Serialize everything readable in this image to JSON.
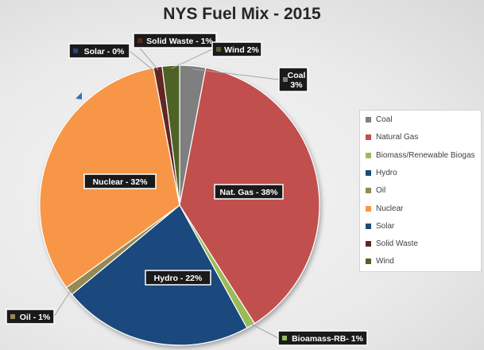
{
  "chart_data": {
    "type": "pie",
    "title": "NYS Fuel Mix - 2015",
    "slices": [
      {
        "name": "Coal",
        "value": 3,
        "color": "#7f7f7f",
        "label": "Coal\n3%"
      },
      {
        "name": "Natural Gas",
        "value": 38,
        "color": "#c0504d",
        "label": "Nat. Gas - 38%"
      },
      {
        "name": "Biomass/Renewable Biogas",
        "value": 1,
        "color": "#9bbb59",
        "label": "Bioamass-RB- 1%"
      },
      {
        "name": "Hydro",
        "value": 22,
        "color": "#1f497d",
        "label": "Hydro - 22%"
      },
      {
        "name": "Oil",
        "value": 1,
        "color": "#948a54",
        "label": "Oil - 1%"
      },
      {
        "name": "Nuclear",
        "value": 32,
        "color": "#f79646",
        "label": "Nuclear - 32%"
      },
      {
        "name": "Solar",
        "value": 0,
        "color": "#1f497d",
        "label": "Solar - 0%"
      },
      {
        "name": "Solid Waste",
        "value": 1,
        "color": "#632523",
        "label": "Solid Waste - 1%"
      },
      {
        "name": "Wind",
        "value": 2,
        "color": "#4f6228",
        "label": "Wind 2%"
      }
    ],
    "legend_position": "right"
  }
}
